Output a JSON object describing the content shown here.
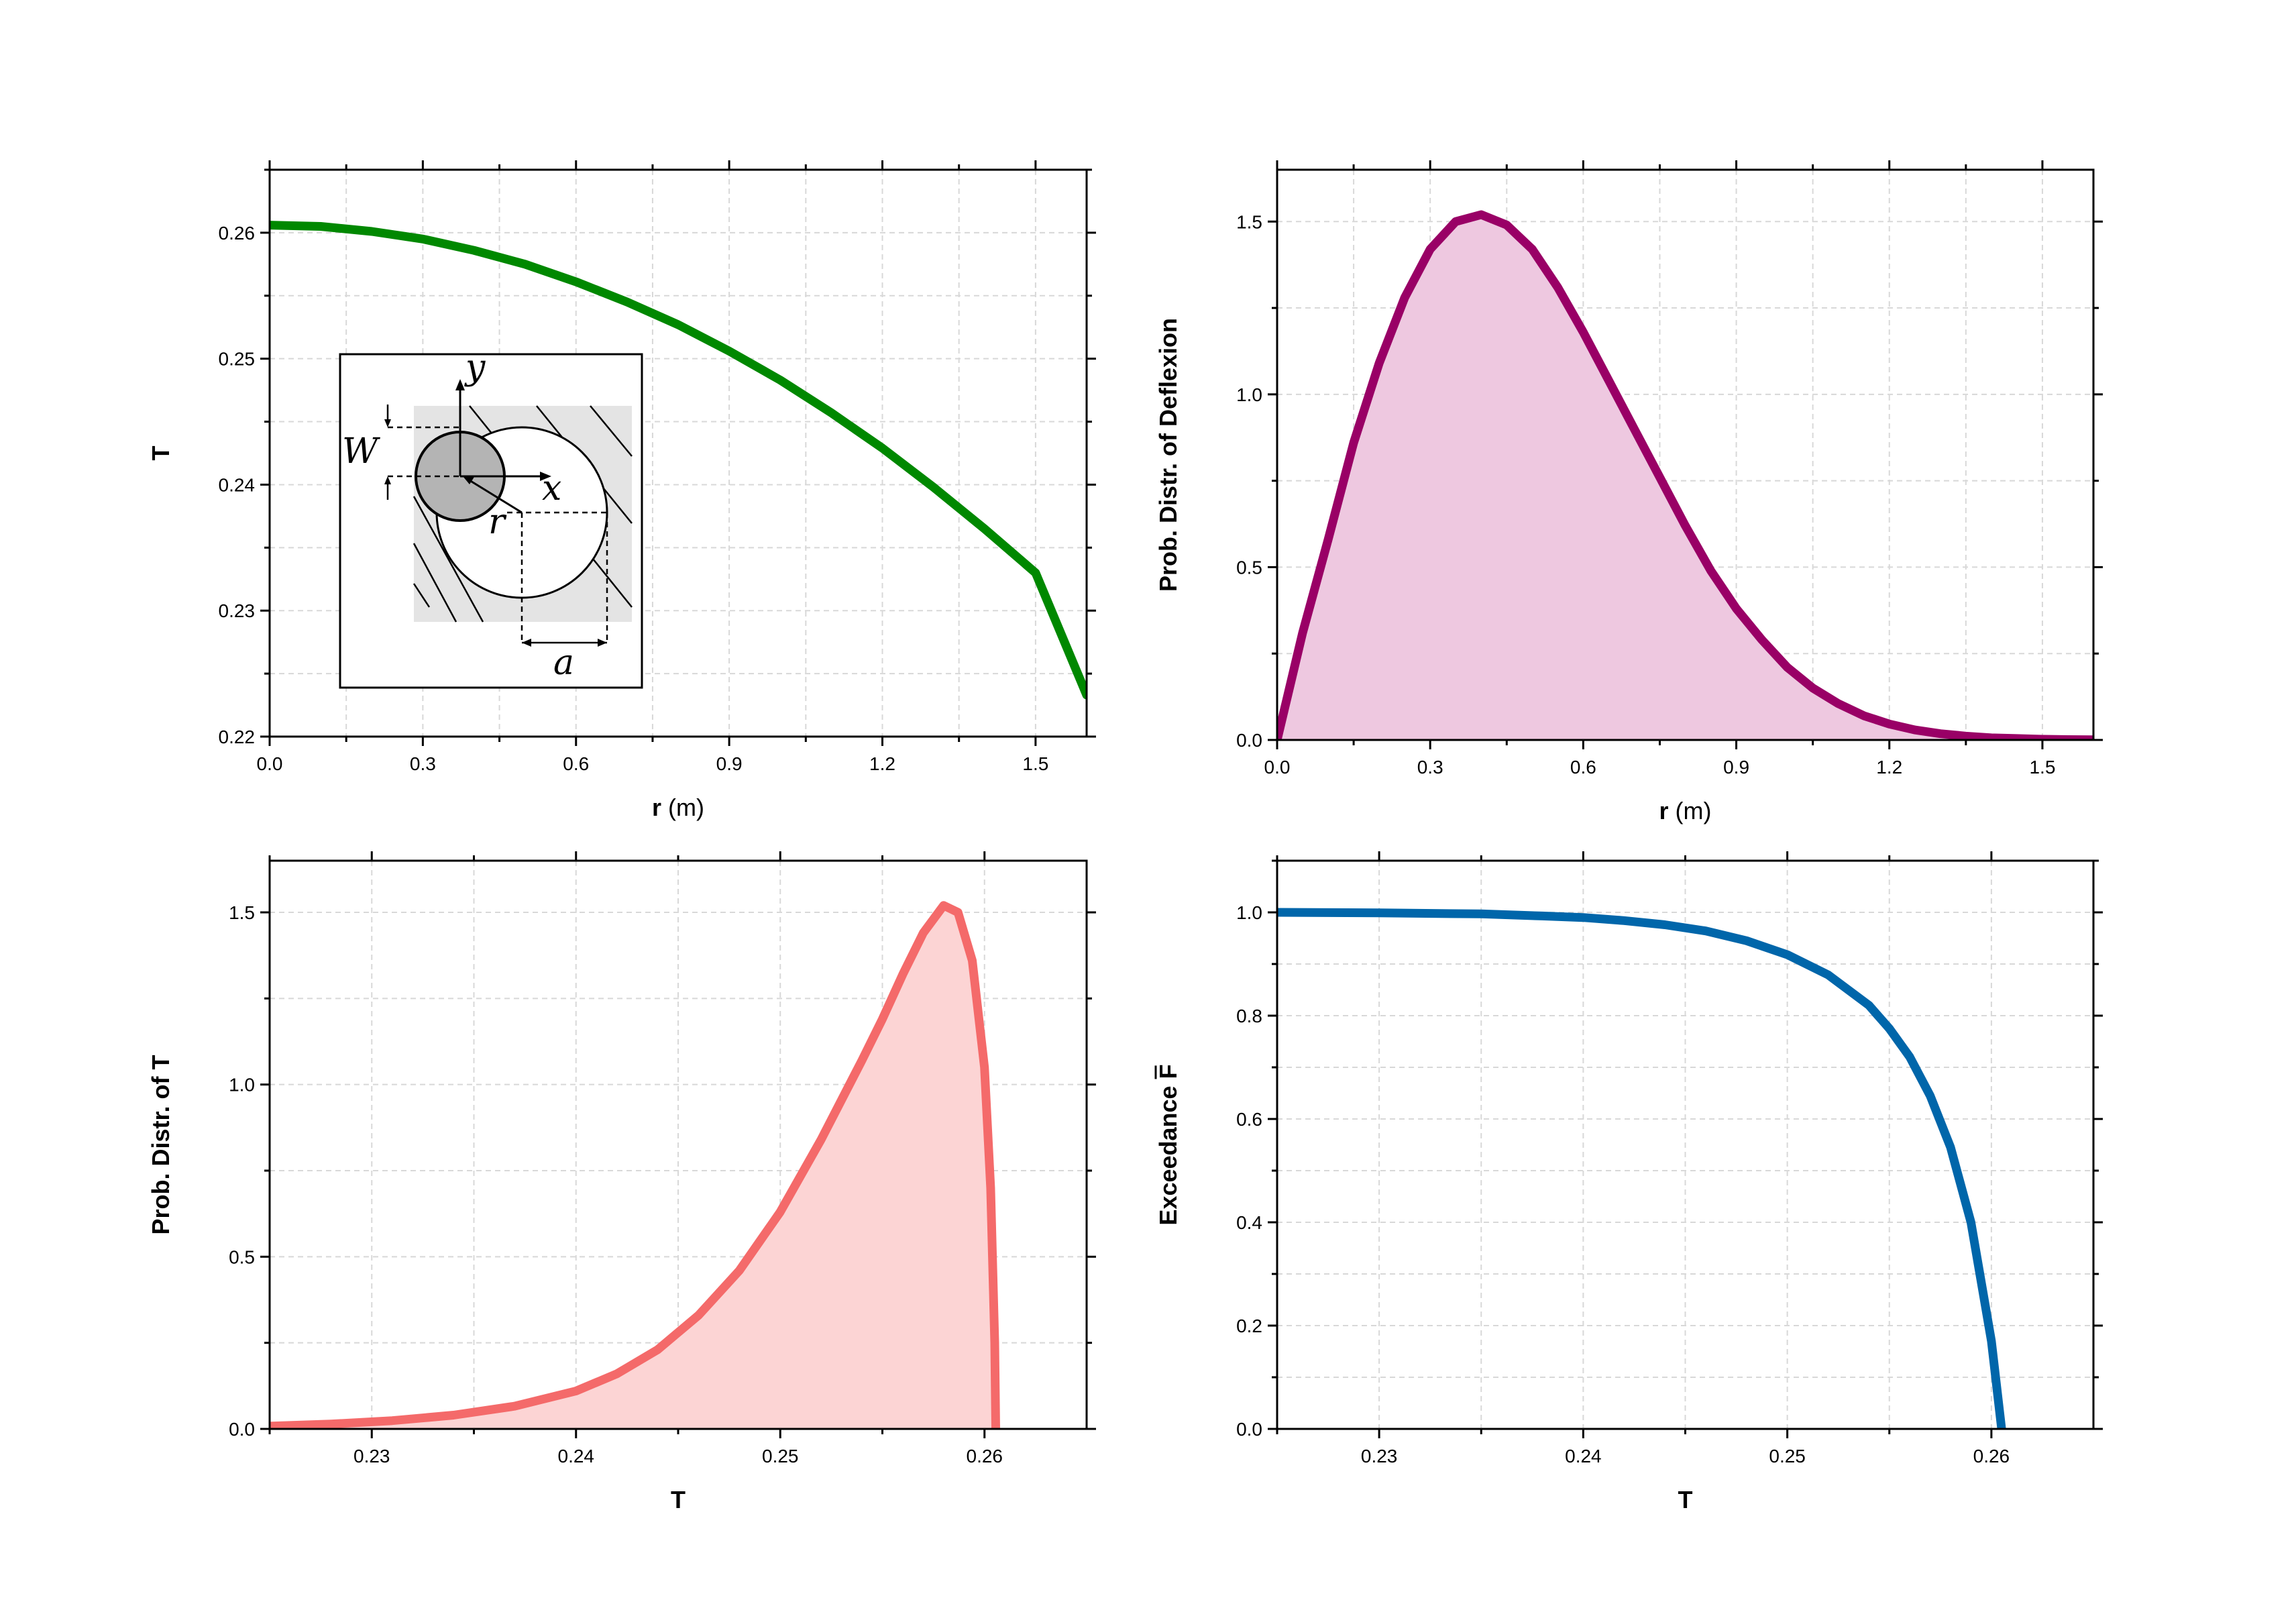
{
  "chart_data": [
    {
      "id": "tl",
      "type": "line",
      "xlabel_bold": "r",
      "xlabel_rest": " (m)",
      "ylabel": "T",
      "xlim": [
        0,
        1.6
      ],
      "ylim": [
        0.22,
        0.265
      ],
      "xticks": [
        0.0,
        0.3,
        0.6,
        0.9,
        1.2,
        1.5
      ],
      "xtick_labels": [
        "0.0",
        "0.3",
        "0.6",
        "0.9",
        "1.2",
        "1.5"
      ],
      "yticks": [
        0.22,
        0.23,
        0.24,
        0.25,
        0.26
      ],
      "ytick_labels": [
        "0.22",
        "0.23",
        "0.24",
        "0.25",
        "0.26"
      ],
      "grid": true,
      "fill": false,
      "color": "#008800",
      "series": [
        {
          "x": [
            0.0,
            0.1,
            0.2,
            0.3,
            0.4,
            0.5,
            0.6,
            0.7,
            0.8,
            0.9,
            1.0,
            1.1,
            1.2,
            1.3,
            1.4,
            1.5,
            1.6
          ],
          "y": [
            0.2606,
            0.2605,
            0.2601,
            0.2595,
            0.2586,
            0.2575,
            0.2561,
            0.2545,
            0.2527,
            0.2506,
            0.2483,
            0.2457,
            0.2429,
            0.2398,
            0.2365,
            0.233,
            0.2233
          ]
        }
      ],
      "inset_labels": {
        "y": "y",
        "x": "x",
        "W": "W",
        "r": "r",
        "a": "a"
      }
    },
    {
      "id": "tr",
      "type": "area",
      "xlabel_bold": "r",
      "xlabel_rest": " (m)",
      "ylabel": "Prob. Distr. of Deflexion",
      "xlim": [
        0,
        1.6
      ],
      "ylim": [
        0,
        1.65
      ],
      "xticks": [
        0.0,
        0.3,
        0.6,
        0.9,
        1.2,
        1.5
      ],
      "xtick_labels": [
        "0.0",
        "0.3",
        "0.6",
        "0.9",
        "1.2",
        "1.5"
      ],
      "yticks": [
        0.0,
        0.5,
        1.0,
        1.5
      ],
      "ytick_labels": [
        "0.0",
        "0.5",
        "1.0",
        "1.5"
      ],
      "grid": true,
      "fill": true,
      "color": "#990066",
      "fill_color": "#eec8e0",
      "series": [
        {
          "x": [
            0.0,
            0.05,
            0.1,
            0.15,
            0.2,
            0.25,
            0.3,
            0.35,
            0.4,
            0.45,
            0.5,
            0.55,
            0.6,
            0.65,
            0.7,
            0.75,
            0.8,
            0.85,
            0.9,
            0.95,
            1.0,
            1.05,
            1.1,
            1.15,
            1.2,
            1.25,
            1.3,
            1.35,
            1.4,
            1.45,
            1.5,
            1.55,
            1.6
          ],
          "y": [
            0.0,
            0.31,
            0.58,
            0.86,
            1.09,
            1.28,
            1.42,
            1.5,
            1.52,
            1.49,
            1.42,
            1.31,
            1.18,
            1.04,
            0.9,
            0.76,
            0.62,
            0.49,
            0.38,
            0.29,
            0.21,
            0.15,
            0.105,
            0.07,
            0.046,
            0.029,
            0.018,
            0.011,
            0.006,
            0.004,
            0.002,
            0.001,
            0.0005
          ]
        }
      ]
    },
    {
      "id": "bl",
      "type": "area",
      "xlabel_bold": "T",
      "xlabel_rest": "",
      "ylabel": "Prob. Distr. of T",
      "xlim": [
        0.225,
        0.265
      ],
      "ylim": [
        0,
        1.65
      ],
      "xticks": [
        0.23,
        0.24,
        0.25,
        0.26
      ],
      "xtick_labels": [
        "0.23",
        "0.24",
        "0.25",
        "0.26"
      ],
      "yticks": [
        0.0,
        0.5,
        1.0,
        1.5
      ],
      "ytick_labels": [
        "0.0",
        "0.5",
        "1.0",
        "1.5"
      ],
      "grid": true,
      "fill": true,
      "color": "#f46a6a",
      "fill_color": "#fcd4d4",
      "series": [
        {
          "x": [
            0.225,
            0.228,
            0.231,
            0.234,
            0.237,
            0.24,
            0.242,
            0.244,
            0.246,
            0.248,
            0.25,
            0.252,
            0.254,
            0.255,
            0.256,
            0.257,
            0.258,
            0.2587,
            0.2594,
            0.26,
            0.2603,
            0.2605,
            0.26055
          ],
          "y": [
            0.008,
            0.014,
            0.024,
            0.04,
            0.066,
            0.11,
            0.16,
            0.23,
            0.33,
            0.46,
            0.63,
            0.84,
            1.07,
            1.19,
            1.32,
            1.44,
            1.52,
            1.5,
            1.36,
            1.05,
            0.7,
            0.25,
            0.0
          ]
        }
      ]
    },
    {
      "id": "br",
      "type": "line",
      "xlabel_bold": "T",
      "xlabel_rest": "",
      "ylabel": "Exceedance F",
      "ylabel_overline_char": "F",
      "xlim": [
        0.225,
        0.265
      ],
      "ylim": [
        0,
        1.1
      ],
      "xticks": [
        0.23,
        0.24,
        0.25,
        0.26
      ],
      "xtick_labels": [
        "0.23",
        "0.24",
        "0.25",
        "0.26"
      ],
      "yticks": [
        0.0,
        0.2,
        0.4,
        0.6,
        0.8,
        1.0
      ],
      "ytick_labels": [
        "0.0",
        "0.2",
        "0.4",
        "0.6",
        "0.8",
        "1.0"
      ],
      "grid": true,
      "fill": false,
      "color": "#0066aa",
      "series": [
        {
          "x": [
            0.225,
            0.23,
            0.235,
            0.238,
            0.24,
            0.242,
            0.244,
            0.246,
            0.248,
            0.25,
            0.252,
            0.254,
            0.255,
            0.256,
            0.257,
            0.258,
            0.259,
            0.26,
            0.2605
          ],
          "y": [
            1.0,
            0.999,
            0.997,
            0.993,
            0.99,
            0.984,
            0.976,
            0.964,
            0.945,
            0.918,
            0.879,
            0.82,
            0.775,
            0.72,
            0.645,
            0.545,
            0.4,
            0.17,
            0.0
          ]
        }
      ]
    }
  ]
}
